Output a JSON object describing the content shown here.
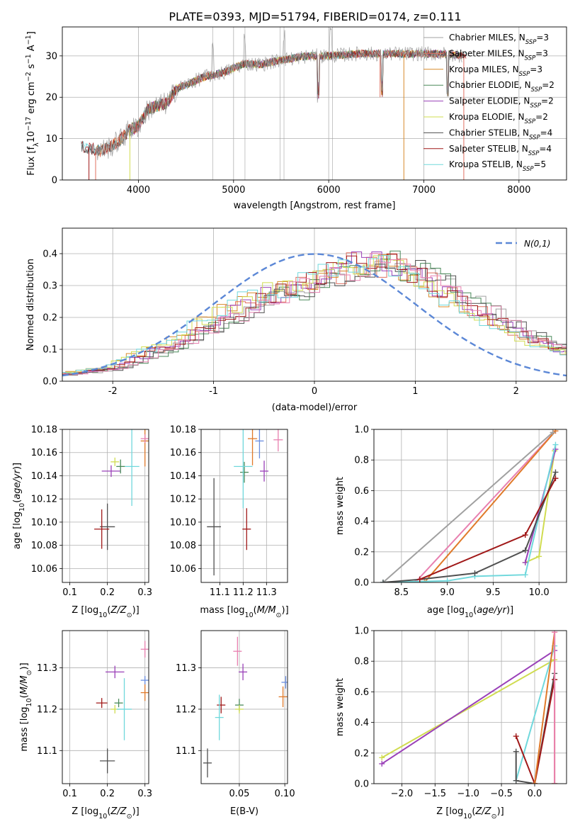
{
  "figure": {
    "title": "PLATE=0393, MJD=51794, FIBERID=0174, z=0.111"
  },
  "colors": {
    "Chabrier MILES": "#a0a0a0",
    "Salpeter MILES": "#e07060",
    "Kroupa MILES": "#d88a2a",
    "Chabrier ELODIE": "#4a8a5a",
    "Salpeter ELODIE": "#9a40b8",
    "Kroupa ELODIE": "#d0dc50",
    "Chabrier STELIB": "#505050",
    "Salpeter STELIB": "#a01818",
    "Kroupa STELIB": "#70d8dc",
    "c_orange": "#e07a2a",
    "c_pink": "#e880b0",
    "c_blue": "#6a8ee0",
    "c_normal": "#5b87d6"
  },
  "chart_data": [
    {
      "id": "spectrum",
      "type": "line",
      "xlabel": "wavelength [Angstrom, rest frame]",
      "ylabel": "Flux [f_λ 10^-17 erg cm^-2 s^-1 A^-1]",
      "xlim": [
        3200,
        8500
      ],
      "ylim": [
        0,
        37
      ],
      "xticks": [
        4000,
        5000,
        6000,
        7000,
        8000
      ],
      "yticks": [
        0,
        10,
        20,
        30
      ],
      "grid": true,
      "legend_placement": "right",
      "legend": [
        {
          "name": "Chabrier MILES, N_SSP=3",
          "base": "Chabrier MILES, N",
          "sub": "SSP",
          "tail": "=3",
          "color": "#a0a0a0"
        },
        {
          "name": "Salpeter MILES, N_SSP=3",
          "base": "Salpeter MILES, N",
          "sub": "SSP",
          "tail": "=3",
          "color": "#e07060"
        },
        {
          "name": "Kroupa MILES, N_SSP=3",
          "base": "Kroupa MILES, N",
          "sub": "SSP",
          "tail": "=3",
          "color": "#d88a2a"
        },
        {
          "name": "Chabrier ELODIE, N_SSP=2",
          "base": "Chabrier ELODIE, N",
          "sub": "SSP",
          "tail": "=2",
          "color": "#4a8a5a"
        },
        {
          "name": "Salpeter ELODIE, N_SSP=2",
          "base": "Salpeter ELODIE, N",
          "sub": "SSP",
          "tail": "=2",
          "color": "#9a40b8"
        },
        {
          "name": "Kroupa ELODIE, N_SSP=2",
          "base": "Kroupa ELODIE, N",
          "sub": "SSP",
          "tail": "=2",
          "color": "#d0dc50"
        },
        {
          "name": "Chabrier STELIB, N_SSP=4",
          "base": "Chabrier STELIB, N",
          "sub": "SSP",
          "tail": "=4",
          "color": "#505050"
        },
        {
          "name": "Salpeter STELIB, N_SSP=4",
          "base": "Salpeter STELIB, N",
          "sub": "SSP",
          "tail": "=4",
          "color": "#a01818"
        },
        {
          "name": "Kroupa STELIB, N_SSP=5",
          "base": "Kroupa STELIB, N",
          "sub": "SSP",
          "tail": "=5",
          "color": "#70d8dc"
        }
      ],
      "continuum": [
        [
          3400,
          8
        ],
        [
          3500,
          7.5
        ],
        [
          3600,
          7
        ],
        [
          3700,
          8
        ],
        [
          3800,
          9.5
        ],
        [
          3900,
          12
        ],
        [
          4000,
          13
        ],
        [
          4100,
          17
        ],
        [
          4200,
          18
        ],
        [
          4300,
          18.5
        ],
        [
          4400,
          22
        ],
        [
          4500,
          23
        ],
        [
          4700,
          25
        ],
        [
          4900,
          26
        ],
        [
          5100,
          28
        ],
        [
          5300,
          28
        ],
        [
          5500,
          29
        ],
        [
          5800,
          30
        ],
        [
          6000,
          30
        ],
        [
          6300,
          30.5
        ],
        [
          6600,
          30.5
        ],
        [
          6900,
          30.5
        ],
        [
          7200,
          30.5
        ],
        [
          7450,
          30
        ]
      ],
      "spikes_down": [
        5890,
        6560,
        7250
      ],
      "spikes_up": [
        4780,
        5120,
        5530,
        6020
      ],
      "dropouts": [
        3550,
        3910,
        6790,
        7420
      ]
    },
    {
      "id": "residuals",
      "type": "line",
      "xlabel": "(data-model)/error",
      "ylabel": "Normed distribution",
      "xlim": [
        -2.5,
        2.5
      ],
      "ylim": [
        0,
        0.48
      ],
      "xticks": [
        -2,
        -1,
        0,
        1,
        2
      ],
      "yticks": [
        0.0,
        0.1,
        0.2,
        0.3,
        0.4
      ],
      "grid": true,
      "legend_placement": "top-right",
      "normal_label": "N(0,1)",
      "normal_curve": {
        "mu": 0,
        "sigma": 1
      },
      "hist_centers": [
        -2.5,
        -2.0,
        -1.5,
        -1.0,
        -0.5,
        0.0,
        0.5,
        1.0,
        1.5,
        2.0,
        2.5
      ],
      "hist_profile": [
        0.02,
        0.04,
        0.1,
        0.18,
        0.26,
        0.3,
        0.37,
        0.33,
        0.24,
        0.15,
        0.09
      ]
    },
    {
      "id": "age_vs_Z",
      "type": "scatter",
      "xlabel": "Z [log10(Z/Z⊙)]",
      "ylabel": "age [log10(age/yr)]",
      "xlim": [
        0.08,
        0.31
      ],
      "ylim": [
        10.048,
        10.18
      ],
      "xticks": [
        "0.1",
        "0.2",
        "0.3"
      ],
      "xtick_values": [
        0.1,
        0.2,
        0.3
      ],
      "yticks": [
        "10.06",
        "10.08",
        "10.10",
        "10.12",
        "10.14",
        "10.16",
        "10.18"
      ],
      "ytick_values": [
        10.06,
        10.08,
        10.1,
        10.12,
        10.14,
        10.16,
        10.18
      ],
      "points": [
        {
          "x": 0.2,
          "y": 10.096,
          "xerr": 0.02,
          "yerr": 0.02,
          "color": "#505050"
        },
        {
          "x": 0.185,
          "y": 10.094,
          "xerr": 0.02,
          "yerr": 0.017,
          "color": "#a01818"
        },
        {
          "x": 0.21,
          "y": 10.144,
          "xerr": 0.025,
          "yerr": 0.005,
          "color": "#9a40b8"
        },
        {
          "x": 0.265,
          "y": 10.148,
          "xerr": 0.02,
          "yerr": 0.034,
          "color": "#70d8dc"
        },
        {
          "x": 0.235,
          "y": 10.148,
          "xerr": 0.005,
          "yerr": 0.006,
          "color": "#4a8a5a"
        },
        {
          "x": 0.22,
          "y": 10.152,
          "xerr": 0.004,
          "yerr": 0.002,
          "color": "#d0dc50"
        },
        {
          "x": 0.3,
          "y": 10.17,
          "xerr": 0.005,
          "yerr": 0.022,
          "color": "#e07a2a"
        },
        {
          "x": 0.3,
          "y": 10.172,
          "xerr": 0.003,
          "yerr": 0.002,
          "color": "#e880b0"
        }
      ]
    },
    {
      "id": "age_vs_mass",
      "type": "scatter",
      "xlabel": "mass [log10(M/M⊙)]",
      "ylabel": "",
      "xlim": [
        11.02,
        11.39
      ],
      "ylim": [
        10.048,
        10.18
      ],
      "xticks": [
        "11.1",
        "11.2",
        "11.3"
      ],
      "xtick_values": [
        11.1,
        11.2,
        11.3
      ],
      "yticks": [
        "10.06",
        "10.08",
        "10.10",
        "10.12",
        "10.14",
        "10.16",
        "10.18"
      ],
      "ytick_values": [
        10.06,
        10.08,
        10.1,
        10.12,
        10.14,
        10.16,
        10.18
      ],
      "points": [
        {
          "x": 11.075,
          "y": 10.096,
          "xerr": 0.03,
          "yerr": 0.042,
          "color": "#505050"
        },
        {
          "x": 11.215,
          "y": 10.094,
          "xerr": 0.012,
          "yerr": 0.018,
          "color": "#a01818"
        },
        {
          "x": 11.205,
          "y": 10.143,
          "xerr": 0.006,
          "yerr": 0.009,
          "color": "#4a8a5a"
        },
        {
          "x": 11.2,
          "y": 10.148,
          "xerr": 0.04,
          "yerr": 0.036,
          "color": "#70d8dc"
        },
        {
          "x": 11.29,
          "y": 10.144,
          "xerr": 0.015,
          "yerr": 0.009,
          "color": "#9a40b8"
        },
        {
          "x": 11.27,
          "y": 10.17,
          "xerr": 0.01,
          "yerr": 0.015,
          "color": "#6a8ee0"
        },
        {
          "x": 11.24,
          "y": 10.172,
          "xerr": 0.02,
          "yerr": 0.023,
          "color": "#e07a2a"
        },
        {
          "x": 11.35,
          "y": 10.171,
          "xerr": 0.02,
          "yerr": 0.01,
          "color": "#e880b0"
        }
      ]
    },
    {
      "id": "massweight_vs_age",
      "type": "line",
      "xlabel": "age [log10(age/yr)]",
      "ylabel": "mass weight",
      "xlim": [
        8.2,
        10.3
      ],
      "ylim": [
        0,
        1.0
      ],
      "xticks": [
        "8.5",
        "9.0",
        "9.5",
        "10.0"
      ],
      "xtick_values": [
        8.5,
        9.0,
        9.5,
        10.0
      ],
      "yticks": [
        "0.0",
        "0.2",
        "0.4",
        "0.6",
        "0.8",
        "1.0"
      ],
      "ytick_values": [
        0,
        0.2,
        0.4,
        0.6,
        0.8,
        1.0
      ],
      "series": [
        {
          "color": "#e880b0",
          "points": [
            [
              8.65,
              0.0
            ],
            [
              10.18,
              0.99
            ]
          ]
        },
        {
          "color": "#e07a2a",
          "points": [
            [
              8.75,
              0.0
            ],
            [
              10.18,
              0.99
            ]
          ]
        },
        {
          "color": "#a0a0a0",
          "points": [
            [
              8.3,
              0.0
            ],
            [
              10.15,
              0.98
            ]
          ]
        },
        {
          "color": "#d0dc50",
          "points": [
            [
              9.85,
              0.13
            ],
            [
              10.0,
              0.17
            ],
            [
              10.17,
              0.86
            ]
          ]
        },
        {
          "color": "#9a40b8",
          "points": [
            [
              9.85,
              0.13
            ],
            [
              10.18,
              0.87
            ]
          ]
        },
        {
          "color": "#70d8dc",
          "points": [
            [
              8.3,
              0.0
            ],
            [
              9.0,
              0.01
            ],
            [
              9.3,
              0.04
            ],
            [
              9.85,
              0.05
            ],
            [
              10.18,
              0.9
            ]
          ]
        },
        {
          "color": "#505050",
          "points": [
            [
              8.3,
              0.0
            ],
            [
              8.7,
              0.02
            ],
            [
              9.3,
              0.06
            ],
            [
              9.85,
              0.21
            ],
            [
              10.18,
              0.72
            ]
          ]
        },
        {
          "color": "#a01818",
          "points": [
            [
              8.7,
              0.02
            ],
            [
              9.85,
              0.31
            ],
            [
              10.18,
              0.68
            ]
          ]
        }
      ]
    },
    {
      "id": "mass_vs_Z",
      "type": "scatter",
      "xlabel": "Z [log10(Z/Z⊙)]",
      "ylabel": "mass [log10(M/M⊙)]",
      "xlim": [
        0.08,
        0.31
      ],
      "ylim": [
        11.02,
        11.39
      ],
      "xticks": [
        "0.1",
        "0.2",
        "0.3"
      ],
      "xtick_values": [
        0.1,
        0.2,
        0.3
      ],
      "yticks": [
        "11.1",
        "11.2",
        "11.3"
      ],
      "ytick_values": [
        11.1,
        11.2,
        11.3
      ],
      "points": [
        {
          "x": 0.2,
          "y": 11.075,
          "xerr": 0.02,
          "yerr": 0.03,
          "color": "#505050"
        },
        {
          "x": 0.185,
          "y": 11.215,
          "xerr": 0.015,
          "yerr": 0.012,
          "color": "#a01818"
        },
        {
          "x": 0.23,
          "y": 11.215,
          "xerr": 0.01,
          "yerr": 0.006,
          "color": "#4a8a5a"
        },
        {
          "x": 0.22,
          "y": 11.2,
          "xerr": 0.005,
          "yerr": 0.005,
          "color": "#d0dc50"
        },
        {
          "x": 0.245,
          "y": 11.2,
          "xerr": 0.02,
          "yerr": 0.075,
          "color": "#70d8dc"
        },
        {
          "x": 0.22,
          "y": 11.29,
          "xerr": 0.025,
          "yerr": 0.015,
          "color": "#9a40b8"
        },
        {
          "x": 0.3,
          "y": 11.27,
          "xerr": 0.005,
          "yerr": 0.005,
          "color": "#6a8ee0"
        },
        {
          "x": 0.3,
          "y": 11.24,
          "xerr": 0.005,
          "yerr": 0.02,
          "color": "#e07a2a"
        },
        {
          "x": 0.3,
          "y": 11.345,
          "xerr": 0.005,
          "yerr": 0.02,
          "color": "#e880b0"
        }
      ]
    },
    {
      "id": "mass_vs_EBV",
      "type": "scatter",
      "xlabel": "E(B-V)",
      "ylabel": "",
      "xlim": [
        0.008,
        0.103
      ],
      "ylim": [
        11.02,
        11.39
      ],
      "xticks": [
        "0.05",
        "0.10"
      ],
      "xtick_values": [
        0.05,
        0.1
      ],
      "yticks": [
        "11.1",
        "11.2",
        "11.3"
      ],
      "ytick_values": [
        11.1,
        11.2,
        11.3
      ],
      "points": [
        {
          "x": 0.015,
          "y": 11.07,
          "xerr": 0,
          "yerr": 0.035,
          "color": "#505050"
        },
        {
          "x": 0.03,
          "y": 11.21,
          "xerr": 0,
          "yerr": 0.02,
          "color": "#a01818"
        },
        {
          "x": 0.028,
          "y": 11.18,
          "xerr": 0,
          "yerr": 0.055,
          "color": "#70d8dc"
        },
        {
          "x": 0.05,
          "y": 11.21,
          "xerr": 0,
          "yerr": 0.015,
          "color": "#4a8a5a"
        },
        {
          "x": 0.05,
          "y": 11.2,
          "xerr": 0,
          "yerr": 0.005,
          "color": "#d0dc50"
        },
        {
          "x": 0.048,
          "y": 11.34,
          "xerr": 0,
          "yerr": 0.035,
          "color": "#e880b0"
        },
        {
          "x": 0.054,
          "y": 11.29,
          "xerr": 0,
          "yerr": 0.02,
          "color": "#9a40b8"
        },
        {
          "x": 0.098,
          "y": 11.23,
          "xerr": 0,
          "yerr": 0.025,
          "color": "#e07a2a"
        },
        {
          "x": 0.101,
          "y": 11.265,
          "xerr": 0,
          "yerr": 0.015,
          "color": "#6a8ee0"
        }
      ]
    },
    {
      "id": "massweight_vs_Z",
      "type": "line",
      "xlabel": "Z [log10(Z/Z⊙)]",
      "ylabel": "mass weight",
      "xlim": [
        -2.42,
        0.48
      ],
      "ylim": [
        0,
        1.0
      ],
      "xticks": [
        "−2.0",
        "−1.5",
        "−1.0",
        "−0.5",
        "0.0"
      ],
      "xtick_values": [
        -2.0,
        -1.5,
        -1.0,
        -0.5,
        0.0
      ],
      "yticks": [
        "0.0",
        "0.2",
        "0.4",
        "0.6",
        "0.8",
        "1.0"
      ],
      "ytick_values": [
        0,
        0.2,
        0.4,
        0.6,
        0.8,
        1.0
      ],
      "series": [
        {
          "color": "#d0dc50",
          "points": [
            [
              -2.3,
              0.17
            ],
            [
              0.3,
              0.81
            ]
          ]
        },
        {
          "color": "#9a40b8",
          "points": [
            [
              -2.3,
              0.13
            ],
            [
              0.3,
              0.87
            ]
          ]
        },
        {
          "color": "#70d8dc",
          "points": [
            [
              -0.28,
              0.02
            ],
            [
              0.3,
              0.9
            ]
          ]
        },
        {
          "color": "#505050",
          "points": [
            [
              -0.28,
              0.21
            ],
            [
              -0.28,
              0.02
            ],
            [
              0.0,
              0.0
            ],
            [
              0.3,
              0.72
            ]
          ]
        },
        {
          "color": "#a01818",
          "points": [
            [
              -0.28,
              0.31
            ],
            [
              0.0,
              0.0
            ],
            [
              0.3,
              0.68
            ]
          ]
        },
        {
          "color": "#e07a2a",
          "points": [
            [
              0.0,
              0.0
            ],
            [
              0.3,
              0.99
            ],
            [
              0.3,
              0.0
            ]
          ]
        },
        {
          "color": "#e880b0",
          "points": [
            [
              0.3,
              0.0
            ],
            [
              0.3,
              0.99
            ]
          ]
        }
      ]
    }
  ]
}
